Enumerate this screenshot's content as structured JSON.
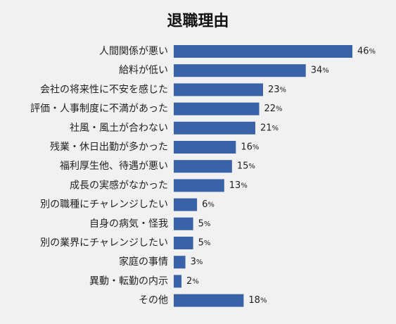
{
  "chart_data": {
    "type": "bar",
    "orientation": "horizontal",
    "title": "退職理由",
    "categories": [
      "人間関係が悪い",
      "給料が低い",
      "会社の将来性に不安を感じた",
      "評価・人事制度に不満があった",
      "社風・風土が合わない",
      "残業・休日出勤が多かった",
      "福利厚生他、待遇が悪い",
      "成長の実感がなかった",
      "別の職種にチャレンジしたい",
      "自身の病気・怪我",
      "別の業界にチャレンジしたい",
      "家庭の事情",
      "異動・転勤の内示",
      "その他"
    ],
    "values": [
      46,
      34,
      23,
      22,
      21,
      16,
      15,
      13,
      6,
      5,
      5,
      3,
      2,
      18
    ],
    "value_suffix": "%",
    "bar_color": "#3a62a8",
    "background_color": "#f1f1f1",
    "grid": false,
    "legend": false
  }
}
